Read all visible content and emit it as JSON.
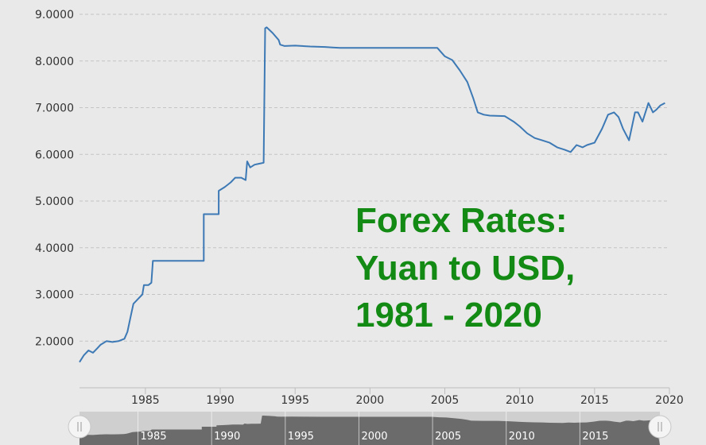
{
  "chart_data": {
    "type": "line",
    "title_lines": [
      "Forex Rates:",
      "Yuan to USD,",
      "1981 - 2020"
    ],
    "xlabel": "",
    "ylabel": "",
    "xlim": [
      1980.6,
      2020.0
    ],
    "ylim": [
      1.0,
      9.0
    ],
    "y_ticks": [
      "2.0000",
      "3.0000",
      "4.0000",
      "5.0000",
      "6.0000",
      "7.0000",
      "8.0000",
      "9.0000"
    ],
    "y_tick_values": [
      2,
      3,
      4,
      5,
      6,
      7,
      8,
      9
    ],
    "x_ticks": [
      "1985",
      "1990",
      "1995",
      "2000",
      "2005",
      "2010",
      "2015",
      "2020"
    ],
    "x_tick_values": [
      1985,
      1990,
      1995,
      2000,
      2005,
      2010,
      2015,
      2020
    ],
    "navigator_ticks": [
      "1985",
      "1990",
      "1995",
      "2000",
      "2005",
      "2010",
      "2015"
    ],
    "grid": true,
    "line_color": "#3d79b5",
    "series": [
      {
        "x": [
          1980.6,
          1980.9,
          1981.2,
          1981.5,
          1981.8,
          1982.0,
          1982.4,
          1982.8,
          1983.2,
          1983.6,
          1983.8,
          1984.0,
          1984.2,
          1984.5,
          1984.8,
          1984.9,
          1985.2,
          1985.4,
          1985.5,
          1985.6,
          1988.9,
          1988.9,
          1989.9,
          1989.9,
          1990.3,
          1990.7,
          1991.0,
          1991.4,
          1991.7,
          1991.8,
          1992.0,
          1992.3,
          1992.6,
          1992.9,
          1993.0,
          1993.1,
          1993.5,
          1993.9,
          1994.0,
          1994.3,
          1995.0,
          1996.0,
          1997.0,
          1997.5,
          1998.0,
          2004.5,
          2005.0,
          2005.5,
          2006.0,
          2006.5,
          2006.9,
          2007.2,
          2007.6,
          2008.0,
          2009.0,
          2009.6,
          2010.0,
          2010.5,
          2011.0,
          2011.5,
          2012.0,
          2012.5,
          2013.0,
          2013.4,
          2013.8,
          2014.2,
          2014.5,
          2015.0,
          2015.5,
          2015.9,
          2016.3,
          2016.6,
          2016.9,
          2017.3,
          2017.7,
          2017.9,
          2018.2,
          2018.6,
          2018.9,
          2019.1,
          2019.4,
          2019.7
        ],
        "y": [
          1.55,
          1.7,
          1.8,
          1.75,
          1.85,
          1.92,
          2.0,
          1.98,
          2.0,
          2.05,
          2.2,
          2.5,
          2.8,
          2.9,
          3.0,
          3.2,
          3.2,
          3.25,
          3.72,
          3.72,
          3.72,
          4.72,
          4.72,
          5.22,
          5.3,
          5.4,
          5.5,
          5.5,
          5.45,
          5.85,
          5.72,
          5.78,
          5.8,
          5.82,
          8.7,
          8.72,
          8.6,
          8.45,
          8.35,
          8.32,
          8.33,
          8.31,
          8.3,
          8.29,
          8.28,
          8.28,
          8.1,
          8.02,
          7.8,
          7.55,
          7.2,
          6.9,
          6.85,
          6.83,
          6.82,
          6.7,
          6.6,
          6.45,
          6.35,
          6.3,
          6.25,
          6.15,
          6.1,
          6.05,
          6.2,
          6.15,
          6.2,
          6.25,
          6.55,
          6.85,
          6.9,
          6.8,
          6.55,
          6.3,
          6.9,
          6.9,
          6.7,
          7.1,
          6.9,
          6.95,
          7.05,
          7.1
        ]
      }
    ]
  }
}
